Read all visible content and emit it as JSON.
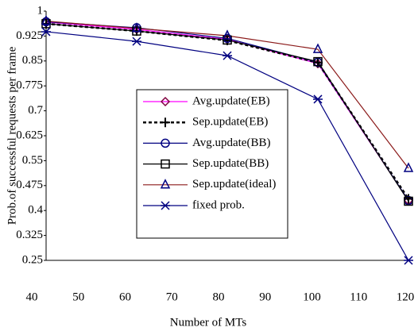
{
  "chart_data": {
    "type": "line",
    "x_label": "Number of MTs",
    "y_label": "Prob.of successful requests per frame",
    "x": [
      40,
      60,
      80,
      100,
      120
    ],
    "xlim": [
      40,
      120
    ],
    "xticks": [
      40,
      50,
      60,
      70,
      80,
      90,
      100,
      110,
      120
    ],
    "ylim": [
      0.25,
      1
    ],
    "yticks": [
      1,
      0.925,
      0.85,
      0.775,
      0.7,
      0.625,
      0.55,
      0.475,
      0.4,
      0.325,
      0.25
    ],
    "series": [
      {
        "name": "Avg.update(EB)",
        "color": "#ff00ff",
        "marker": "diamond",
        "marker_color": "#800040",
        "dash": "solid",
        "values": [
          0.967,
          0.945,
          0.915,
          0.842,
          0.43
        ]
      },
      {
        "name": "Sep.update(EB)",
        "color": "#000000",
        "marker": "plus",
        "marker_color": "#000000",
        "dash": "dotted",
        "values": [
          0.962,
          0.94,
          0.912,
          0.845,
          0.435
        ]
      },
      {
        "name": "Avg.update(BB)",
        "color": "#000080",
        "marker": "circle",
        "marker_color": "#000080",
        "dash": "solid",
        "values": [
          0.968,
          0.95,
          0.918,
          0.846,
          0.43
        ]
      },
      {
        "name": "Sep.update(BB)",
        "color": "#000000",
        "marker": "square",
        "marker_color": "#000000",
        "dash": "solid",
        "values": [
          0.962,
          0.94,
          0.913,
          0.848,
          0.428
        ]
      },
      {
        "name": "Sep.update(ideal)",
        "color": "#8b1a1a",
        "marker": "triangle",
        "marker_color": "#000080",
        "dash": "solid",
        "values": [
          0.97,
          0.948,
          0.926,
          0.885,
          0.527
        ]
      },
      {
        "name": "fixed prob.",
        "color": "#000080",
        "marker": "star",
        "marker_color": "#000080",
        "dash": "solid",
        "values": [
          0.938,
          0.909,
          0.866,
          0.735,
          0.25
        ]
      }
    ]
  }
}
